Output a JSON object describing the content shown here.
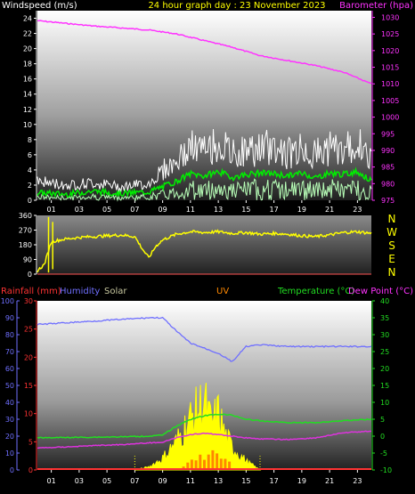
{
  "header": {
    "windspeed_label": "Windspeed (m/s)",
    "title": "24 hour graph day : 23 November 2023",
    "barometer_label": "Barometer (hpa)"
  },
  "compass": [
    "N",
    "W",
    "S",
    "E",
    "N"
  ],
  "bottom_header": {
    "rainfall": "Rainfall (mm)",
    "humidity": "Humidity",
    "solar": "Solar",
    "uv": "UV",
    "temperature": "Temperature (°C)",
    "dewpoint": "Dew Point (°C)"
  },
  "colors": {
    "windspeed_label": "#ffffff",
    "title": "#ffff00",
    "barometer": "#ff33ff",
    "gust": "#ffffff",
    "avg_wind": "#00ee00",
    "wind_light": "#b8ffb8",
    "direction": "#ffff00",
    "rainfall": "#ff3333",
    "humidity": "#6f6fff",
    "solar": "#c8c8a0",
    "uv": "#ff8800",
    "temperature": "#22dd22",
    "dewpoint": "#dd33dd",
    "solar_fill": "#ffff00"
  },
  "chart_data": [
    {
      "type": "line",
      "name": "wind-barometer",
      "x_ticks": [
        "01",
        "03",
        "05",
        "07",
        "09",
        "11",
        "13",
        "15",
        "17",
        "19",
        "21",
        "23"
      ],
      "y_left_ticks": [
        0,
        2,
        4,
        6,
        8,
        10,
        12,
        14,
        16,
        18,
        20,
        22,
        24
      ],
      "y_right_ticks": [
        975,
        980,
        985,
        990,
        995,
        1000,
        1005,
        1010,
        1015,
        1020,
        1025,
        1030
      ],
      "ylim_left": [
        0,
        25
      ],
      "ylim_right": [
        975,
        1032
      ],
      "xlim": [
        0,
        24
      ],
      "series": [
        {
          "name": "Barometer (hpa)",
          "axis": "right",
          "x": [
            0,
            2,
            4,
            6,
            8,
            10,
            12,
            14,
            16,
            18,
            20,
            22,
            24
          ],
          "values": [
            1029.0,
            1028.2,
            1027.4,
            1026.8,
            1026.2,
            1025.0,
            1023.0,
            1021.0,
            1018.5,
            1017.0,
            1015.5,
            1013.5,
            1010.0
          ]
        },
        {
          "name": "Windspeed (m/s)",
          "axis": "left",
          "x": [
            0,
            2,
            4,
            6,
            8,
            9,
            10,
            11,
            12,
            13,
            14,
            15,
            16,
            17,
            18,
            19,
            20,
            21,
            22,
            23,
            24
          ],
          "values": [
            2.5,
            2.0,
            2.3,
            1.8,
            2.2,
            4.0,
            5.0,
            7.0,
            6.5,
            7.5,
            6.0,
            6.5,
            6.8,
            7.0,
            6.2,
            6.8,
            6.0,
            7.0,
            6.5,
            7.5,
            5.0
          ]
        },
        {
          "name": "Average",
          "axis": "left",
          "x": [
            0,
            2,
            4,
            6,
            8,
            9,
            10,
            11,
            12,
            13,
            14,
            15,
            16,
            17,
            18,
            19,
            20,
            21,
            22,
            23,
            24
          ],
          "values": [
            1.0,
            0.8,
            1.2,
            0.9,
            1.1,
            1.8,
            2.5,
            3.5,
            3.2,
            3.8,
            3.0,
            3.4,
            3.6,
            3.5,
            3.2,
            3.6,
            3.0,
            3.6,
            3.4,
            3.8,
            2.5
          ]
        }
      ]
    },
    {
      "type": "line",
      "name": "wind-direction",
      "y_ticks": [
        0,
        90,
        180,
        270,
        360
      ],
      "ylim": [
        0,
        360
      ],
      "xlim": [
        0,
        24
      ],
      "series": [
        {
          "name": "Direction",
          "x": [
            0,
            0.5,
            1,
            2,
            3,
            4,
            5,
            6,
            7,
            7.5,
            8,
            8.5,
            9,
            10,
            11,
            12,
            13,
            14,
            15,
            16,
            17,
            18,
            19,
            20,
            21,
            22,
            23,
            24
          ],
          "values": [
            20,
            60,
            200,
            215,
            225,
            230,
            235,
            240,
            230,
            160,
            100,
            170,
            210,
            245,
            260,
            255,
            260,
            250,
            255,
            245,
            250,
            245,
            235,
            230,
            240,
            255,
            260,
            250
          ]
        }
      ]
    },
    {
      "type": "line",
      "name": "rain-humidity-temperature",
      "x_ticks": [
        "01",
        "03",
        "05",
        "07",
        "09",
        "11",
        "13",
        "15",
        "17",
        "19",
        "21",
        "23"
      ],
      "humidity_ticks": [
        0,
        10,
        20,
        30,
        40,
        50,
        60,
        70,
        80,
        90,
        100
      ],
      "rain_ticks": [
        0,
        5,
        10,
        15,
        20,
        25,
        30
      ],
      "temp_ticks": [
        -10,
        -5,
        0,
        5,
        10,
        15,
        20,
        25,
        30,
        35,
        40
      ],
      "ylim_humidity": [
        0,
        100
      ],
      "ylim_rain": [
        0,
        30
      ],
      "ylim_temp": [
        -10,
        40
      ],
      "xlim": [
        0,
        24
      ],
      "series": [
        {
          "name": "Humidity",
          "axis": "humidity",
          "x": [
            0,
            2,
            4,
            6,
            8,
            9,
            10,
            11,
            12,
            13,
            14,
            15,
            16,
            18,
            20,
            22,
            24
          ],
          "values": [
            86,
            87,
            88,
            89,
            90,
            90,
            82,
            75,
            72,
            69,
            64,
            73,
            74,
            73,
            73,
            73,
            73
          ]
        },
        {
          "name": "Temperature (°C)",
          "axis": "temp",
          "x": [
            0,
            2,
            4,
            6,
            8,
            9,
            10,
            11,
            12,
            13,
            14,
            15,
            16,
            18,
            20,
            22,
            24
          ],
          "values": [
            -0.5,
            -0.4,
            -0.3,
            -0.2,
            0.0,
            0.3,
            3.0,
            5.0,
            6.0,
            6.5,
            6.2,
            5.0,
            4.5,
            4.0,
            4.0,
            4.6,
            5.0
          ]
        },
        {
          "name": "Dew Point (°C)",
          "axis": "temp",
          "x": [
            0,
            2,
            4,
            6,
            8,
            9,
            10,
            11,
            12,
            13,
            14,
            15,
            16,
            18,
            20,
            22,
            24
          ],
          "values": [
            -3.5,
            -3.2,
            -2.8,
            -2.5,
            -2.0,
            -1.8,
            -0.5,
            0.5,
            0.8,
            0.5,
            0.0,
            -0.5,
            -0.8,
            -1.0,
            -0.5,
            1.0,
            1.5
          ]
        },
        {
          "name": "Solar",
          "axis": "rain",
          "x": [
            7,
            8,
            9,
            10,
            11,
            12,
            12.5,
            13,
            13.5,
            14,
            15,
            16
          ],
          "values": [
            0,
            0.5,
            2,
            5,
            9,
            12,
            8,
            10,
            6,
            4,
            1.5,
            0
          ]
        },
        {
          "name": "UV",
          "axis": "rain",
          "x": [
            10.5,
            11,
            11.5,
            12,
            12.5,
            13,
            13.5,
            14
          ],
          "values": [
            0.8,
            2.2,
            2.8,
            2.5,
            3.0,
            2.6,
            2.0,
            1.2
          ]
        }
      ]
    }
  ]
}
